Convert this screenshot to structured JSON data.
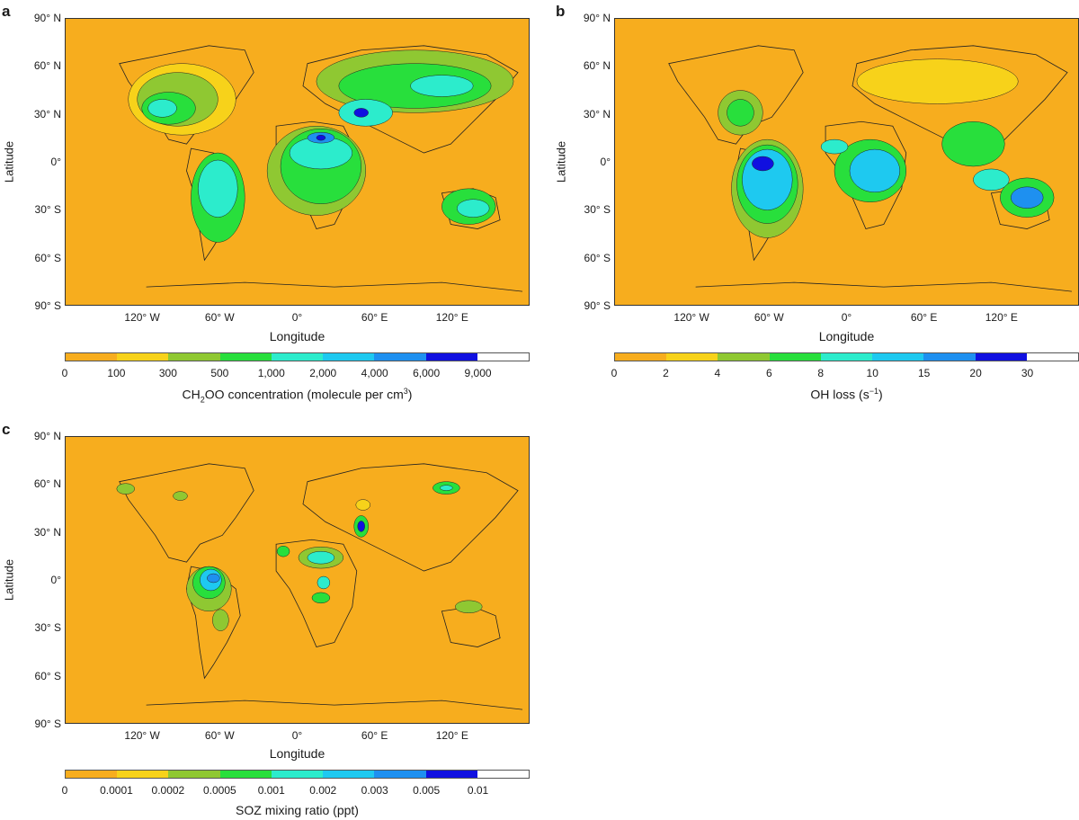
{
  "panels": {
    "a": {
      "letter": "a",
      "ylabel": "Latitude",
      "xlabel": "Longitude",
      "colorbar_ticks": [
        "0",
        "100",
        "300",
        "500",
        "1,000",
        "2,000",
        "4,000",
        "6,000",
        "9,000"
      ],
      "colorbar_title_pre": "CH",
      "colorbar_title_sub": "2",
      "colorbar_title_mid": "OO concentration (molecule per cm",
      "colorbar_title_sup": "3",
      "colorbar_title_post": ")"
    },
    "b": {
      "letter": "b",
      "ylabel": "Latitude",
      "xlabel": "Longitude",
      "colorbar_ticks": [
        "0",
        "2",
        "4",
        "6",
        "8",
        "10",
        "15",
        "20",
        "30"
      ],
      "colorbar_title_pre": "OH loss (s",
      "colorbar_title_sup": "−1",
      "colorbar_title_post": ")"
    },
    "c": {
      "letter": "c",
      "ylabel": "Latitude",
      "xlabel": "Longitude",
      "colorbar_ticks": [
        "0",
        "0.0001",
        "0.0002",
        "0.0005",
        "0.001",
        "0.002",
        "0.003",
        "0.005",
        "0.01"
      ],
      "colorbar_title": "SOZ mixing ratio (ppt)"
    }
  },
  "lat_ticks": [
    "90° N",
    "60° N",
    "30° N",
    "0°",
    "30° S",
    "60° S",
    "90° S"
  ],
  "lon_ticks": [
    "120° W",
    "60° W",
    "0°",
    "60° E",
    "120° E"
  ],
  "colors": {
    "ocean": "#f7ad1e",
    "levels": [
      "#f7ad1e",
      "#f7d21a",
      "#8fc832",
      "#28df3c",
      "#2ceccc",
      "#1ec9f0",
      "#1e90f0",
      "#1010e0",
      "#ffffff"
    ]
  }
}
